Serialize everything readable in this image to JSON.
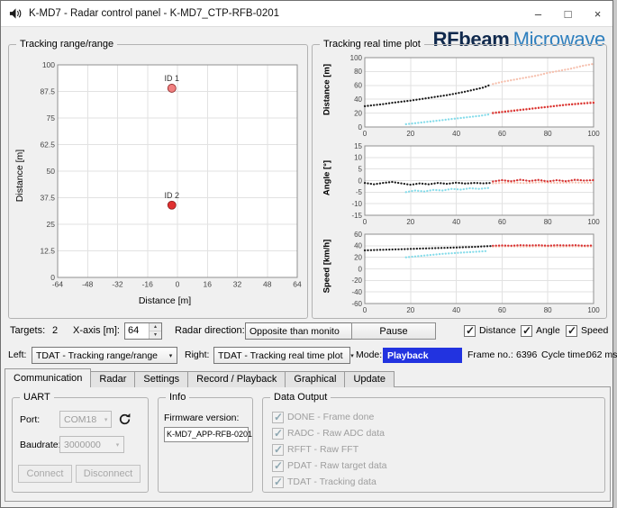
{
  "window": {
    "title": "K-MD7 - Radar control panel - K-MD7_CTP-RFB-0201",
    "minimize": "–",
    "maximize": "□",
    "close": "×"
  },
  "logo": {
    "brand": "RFbeam",
    "suffix": "Microwave"
  },
  "icons": {
    "dropdown": "▾",
    "spin_up": "▴",
    "spin_down": "▾",
    "check": "✓",
    "help": "?"
  },
  "colors": {
    "mode_highlight": "#2233e0",
    "series_black": "#1a1a1a",
    "series_cyan": "#85dcea",
    "series_red": "#d92f2f",
    "series_faded": "#f6c0ae"
  },
  "range_plot": {
    "group_title": "Tracking range/range",
    "xlabel": "Distance [m]",
    "ylabel": "Distance [m]",
    "cfg": {
      "xlim": [
        -64,
        64
      ],
      "ylim": [
        0,
        100
      ],
      "xticks": [
        -64,
        -48,
        -32,
        -16,
        0,
        16,
        32,
        48,
        64
      ],
      "yticks": [
        0,
        12.5,
        25,
        37.5,
        50,
        62.5,
        75,
        87.5,
        100
      ],
      "targets": [
        {
          "label": "ID 1",
          "x": -3,
          "y": 89,
          "color": "#f08080"
        },
        {
          "label": "ID 2",
          "x": -3,
          "y": 34,
          "color": "#e03030"
        }
      ]
    }
  },
  "realtime": {
    "group_title": "Tracking real time plot",
    "pause_label": "Pause",
    "checkboxes": [
      {
        "label": "Distance",
        "checked": true
      },
      {
        "label": "Angle",
        "checked": true
      },
      {
        "label": "Speed",
        "checked": true
      }
    ],
    "charts": [
      {
        "ylabel": "Distance [m]",
        "cfg": {
          "xlim": [
            0,
            100
          ],
          "ylim": [
            0,
            100
          ],
          "xticks": [
            0,
            20,
            40,
            60,
            80,
            100
          ],
          "yticks": [
            0,
            20,
            40,
            60,
            80,
            100
          ],
          "series": [
            {
              "name": "target1-history",
              "color": "#1a1a1a",
              "pts": [
                [
                  0,
                  30
                ],
                [
                  4,
                  31.5
                ],
                [
                  8,
                  33
                ],
                [
                  12,
                  35
                ],
                [
                  16,
                  36.5
                ],
                [
                  20,
                  38
                ],
                [
                  24,
                  40
                ],
                [
                  28,
                  42
                ],
                [
                  32,
                  44
                ],
                [
                  36,
                  46
                ],
                [
                  40,
                  48.5
                ],
                [
                  44,
                  51
                ],
                [
                  48,
                  54
                ],
                [
                  52,
                  57
                ],
                [
                  55,
                  61
                ]
              ]
            },
            {
              "name": "target1-predicted",
              "color": "#f6c0ae",
              "pts": [
                [
                  56,
                  62
                ],
                [
                  60,
                  65
                ],
                [
                  65,
                  68
                ],
                [
                  70,
                  71
                ],
                [
                  75,
                  74
                ],
                [
                  80,
                  78
                ],
                [
                  85,
                  81
                ],
                [
                  90,
                  84
                ],
                [
                  95,
                  88
                ],
                [
                  100,
                  91
                ]
              ]
            },
            {
              "name": "target2-history",
              "color": "#85dcea",
              "pts": [
                [
                  18,
                  4
                ],
                [
                  22,
                  5.5
                ],
                [
                  26,
                  7
                ],
                [
                  30,
                  8.5
                ],
                [
                  34,
                  10
                ],
                [
                  38,
                  11.5
                ],
                [
                  42,
                  13
                ],
                [
                  46,
                  14.5
                ],
                [
                  50,
                  16
                ],
                [
                  54,
                  18
                ]
              ]
            },
            {
              "name": "target2-predicted",
              "color": "#f6c0ae",
              "pts": [
                [
                  56,
                  21
                ],
                [
                  63,
                  23.5
                ],
                [
                  70,
                  26
                ],
                [
                  77,
                  28.5
                ],
                [
                  84,
                  31
                ],
                [
                  91,
                  33.5
                ],
                [
                  100,
                  36.5
                ]
              ]
            },
            {
              "name": "target2-current",
              "color": "#d92f2f",
              "pts": [
                [
                  56,
                  20
                ],
                [
                  60,
                  21.5
                ],
                [
                  64,
                  23
                ],
                [
                  68,
                  24.5
                ],
                [
                  72,
                  26
                ],
                [
                  76,
                  27.5
                ],
                [
                  80,
                  29
                ],
                [
                  84,
                  30.5
                ],
                [
                  88,
                  32
                ],
                [
                  92,
                  33
                ],
                [
                  96,
                  34
                ],
                [
                  100,
                  35
                ]
              ]
            }
          ]
        }
      },
      {
        "ylabel": "Angle [°]",
        "cfg": {
          "xlim": [
            0,
            100
          ],
          "ylim": [
            -15,
            15
          ],
          "xticks": [
            0,
            20,
            40,
            60,
            80,
            100
          ],
          "yticks": [
            -15,
            -10,
            -5,
            0,
            5,
            10,
            15
          ],
          "series": [
            {
              "name": "target1-history",
              "color": "#1a1a1a",
              "pts": [
                [
                  0,
                  -1
                ],
                [
                  4,
                  -1.6
                ],
                [
                  8,
                  -1
                ],
                [
                  12,
                  -0.6
                ],
                [
                  16,
                  -1.2
                ],
                [
                  20,
                  -1.8
                ],
                [
                  24,
                  -1.2
                ],
                [
                  28,
                  -1.6
                ],
                [
                  32,
                  -1
                ],
                [
                  36,
                  -1.4
                ],
                [
                  40,
                  -0.9
                ],
                [
                  44,
                  -1.3
                ],
                [
                  48,
                  -1
                ],
                [
                  52,
                  -1.2
                ],
                [
                  55,
                  -1
                ]
              ]
            },
            {
              "name": "target2-history",
              "color": "#85dcea",
              "pts": [
                [
                  18,
                  -5
                ],
                [
                  22,
                  -4.3
                ],
                [
                  26,
                  -4.7
                ],
                [
                  30,
                  -4
                ],
                [
                  34,
                  -4.3
                ],
                [
                  38,
                  -3.6
                ],
                [
                  42,
                  -3.9
                ],
                [
                  46,
                  -3.3
                ],
                [
                  50,
                  -3.6
                ],
                [
                  54,
                  -3.2
                ]
              ]
            },
            {
              "name": "target2-predicted",
              "color": "#f6c0ae",
              "pts": [
                [
                  56,
                  -1.2
                ],
                [
                  63,
                  -0.8
                ],
                [
                  70,
                  -1.1
                ],
                [
                  77,
                  -0.7
                ],
                [
                  84,
                  -1
                ],
                [
                  91,
                  -0.8
                ],
                [
                  100,
                  -1
                ]
              ]
            },
            {
              "name": "target2-current",
              "color": "#d92f2f",
              "pts": [
                [
                  56,
                  -0.4
                ],
                [
                  60,
                  0.2
                ],
                [
                  64,
                  -0.3
                ],
                [
                  68,
                  0.4
                ],
                [
                  72,
                  -0.2
                ],
                [
                  76,
                  0.3
                ],
                [
                  80,
                  -0.4
                ],
                [
                  84,
                  0.2
                ],
                [
                  88,
                  -0.3
                ],
                [
                  92,
                  0.4
                ],
                [
                  96,
                  0
                ],
                [
                  100,
                  0.2
                ]
              ]
            }
          ]
        }
      },
      {
        "ylabel": "Speed [km/h]",
        "cfg": {
          "xlim": [
            0,
            100
          ],
          "ylim": [
            -60,
            60
          ],
          "xticks": [
            0,
            20,
            40,
            60,
            80,
            100
          ],
          "yticks": [
            -60,
            -40,
            -20,
            0,
            20,
            40,
            60
          ],
          "series": [
            {
              "name": "target1-history",
              "color": "#1a1a1a",
              "pts": [
                [
                  0,
                  32
                ],
                [
                  4,
                  32.5
                ],
                [
                  8,
                  33
                ],
                [
                  12,
                  33.5
                ],
                [
                  16,
                  34
                ],
                [
                  20,
                  34.5
                ],
                [
                  24,
                  35
                ],
                [
                  28,
                  35.5
                ],
                [
                  32,
                  36
                ],
                [
                  36,
                  36.5
                ],
                [
                  40,
                  37
                ],
                [
                  44,
                  37.5
                ],
                [
                  48,
                  38
                ],
                [
                  52,
                  39
                ],
                [
                  55,
                  39.5
                ]
              ]
            },
            {
              "name": "target2-history",
              "color": "#85dcea",
              "pts": [
                [
                  18,
                  20
                ],
                [
                  22,
                  21.5
                ],
                [
                  26,
                  23
                ],
                [
                  30,
                  24.5
                ],
                [
                  34,
                  26
                ],
                [
                  38,
                  27
                ],
                [
                  42,
                  28
                ],
                [
                  46,
                  29
                ],
                [
                  50,
                  30
                ],
                [
                  54,
                  31
                ]
              ]
            },
            {
              "name": "target2-predicted",
              "color": "#f6c0ae",
              "pts": [
                [
                  56,
                  38.5
                ],
                [
                  63,
                  39
                ],
                [
                  70,
                  38.5
                ],
                [
                  77,
                  39
                ],
                [
                  84,
                  38.5
                ],
                [
                  91,
                  39
                ],
                [
                  100,
                  38.5
                ]
              ]
            },
            {
              "name": "target2-current",
              "color": "#d92f2f",
              "pts": [
                [
                  56,
                  40
                ],
                [
                  60,
                  40.5
                ],
                [
                  64,
                  40
                ],
                [
                  68,
                  41
                ],
                [
                  72,
                  40.5
                ],
                [
                  76,
                  41
                ],
                [
                  80,
                  40
                ],
                [
                  84,
                  41
                ],
                [
                  88,
                  40.5
                ],
                [
                  92,
                  41
                ],
                [
                  96,
                  40
                ],
                [
                  100,
                  40.5
                ]
              ]
            }
          ]
        }
      }
    ]
  },
  "controls": {
    "targets_label": "Targets:",
    "targets_value": "2",
    "xaxis_label": "X-axis [m]:",
    "xaxis_value": "64",
    "radar_direction_label": "Radar direction:",
    "radar_direction_value": "Opposite than monito"
  },
  "selector_row": {
    "left_label": "Left:",
    "left_value": "TDAT - Tracking range/range",
    "right_label": "Right:",
    "right_value": "TDAT - Tracking real time plot",
    "mode_label": "Mode:",
    "mode_value": "Playback",
    "frame_label": "Frame no.:",
    "frame_value": "6396",
    "cycle_label": "Cycle time:",
    "cycle_value": "062 ms"
  },
  "tabs": [
    {
      "label": "Communication",
      "active": true
    },
    {
      "label": "Radar",
      "active": false
    },
    {
      "label": "Settings",
      "active": false
    },
    {
      "label": "Record / Playback",
      "active": false
    },
    {
      "label": "Graphical",
      "active": false
    },
    {
      "label": "Update",
      "active": false
    }
  ],
  "uart": {
    "group_title": "UART",
    "port_label": "Port:",
    "port_value": "COM18",
    "baudrate_label": "Baudrate:",
    "baudrate_value": "3000000",
    "connect_label": "Connect",
    "disconnect_label": "Disconnect"
  },
  "info": {
    "group_title": "Info",
    "firmware_label": "Firmware version:",
    "firmware_value": "K-MD7_APP-RFB-0201"
  },
  "data_output": {
    "group_title": "Data Output",
    "items": [
      {
        "label": "DONE - Frame done",
        "checked": true
      },
      {
        "label": "RADC - Raw ADC data",
        "checked": true
      },
      {
        "label": "RFFT - Raw FFT",
        "checked": true
      },
      {
        "label": "PDAT - Raw target data",
        "checked": true
      },
      {
        "label": "TDAT - Tracking data",
        "checked": true
      }
    ]
  }
}
